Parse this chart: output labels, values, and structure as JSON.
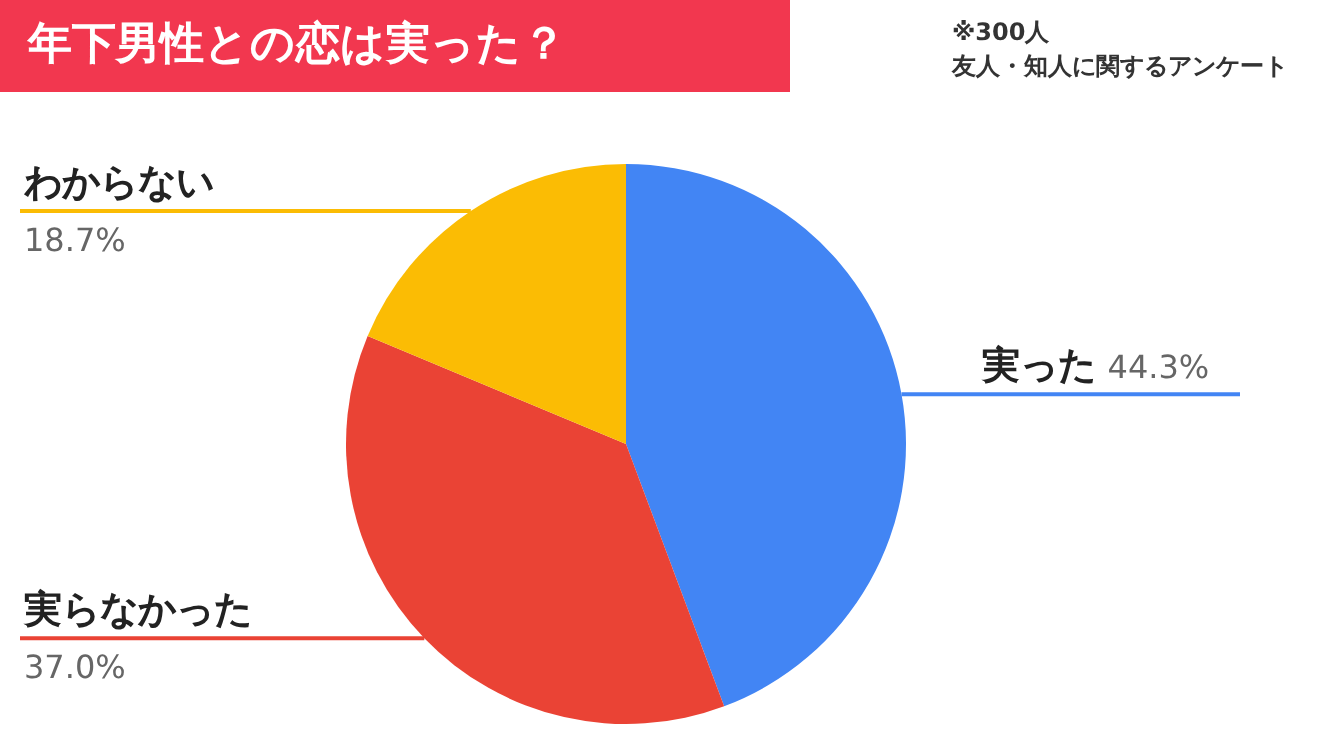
{
  "chart_data": {
    "type": "pie",
    "title": "年下男性との恋は実った？",
    "annotations": [
      "※300人",
      "友人・知人に関するアンケート"
    ],
    "categories": [
      "実った",
      "実らなかった",
      "わからない"
    ],
    "values": [
      44.3,
      37.0,
      18.7
    ],
    "colors": [
      "#4285f4",
      "#ea4335",
      "#fbbc04"
    ],
    "value_labels": [
      "44.3%",
      "37.0%",
      "18.7%"
    ]
  }
}
